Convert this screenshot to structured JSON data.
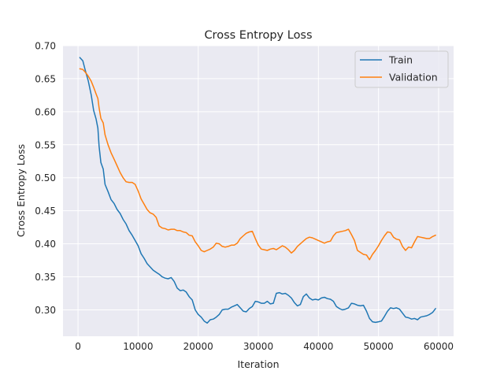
{
  "chart_data": {
    "type": "line",
    "title": "Cross Entropy Loss",
    "xlabel": "Iteration",
    "ylabel": "Cross Entropy Loss",
    "xlim": [
      -2500,
      62500
    ],
    "ylim": [
      0.26,
      0.7
    ],
    "xticks": [
      0,
      10000,
      20000,
      30000,
      40000,
      50000,
      60000
    ],
    "yticks": [
      0.3,
      0.35,
      0.4,
      0.45,
      0.5,
      0.55,
      0.6,
      0.65,
      0.7
    ],
    "xtick_labels": [
      "0",
      "10000",
      "20000",
      "30000",
      "40000",
      "50000",
      "60000"
    ],
    "ytick_labels": [
      "0.30",
      "0.35",
      "0.40",
      "0.45",
      "0.50",
      "0.55",
      "0.60",
      "0.65",
      "0.70"
    ],
    "grid": true,
    "legend_position": "top-right",
    "series": [
      {
        "name": "Train",
        "color": "#1f77b4",
        "points": [
          [
            300,
            0.682
          ],
          [
            800,
            0.677
          ],
          [
            1200,
            0.663
          ],
          [
            1700,
            0.647
          ],
          [
            2200,
            0.625
          ],
          [
            2600,
            0.602
          ],
          [
            3000,
            0.589
          ],
          [
            3300,
            0.575
          ],
          [
            3500,
            0.548
          ],
          [
            3800,
            0.523
          ],
          [
            4200,
            0.513
          ],
          [
            4500,
            0.49
          ],
          [
            5000,
            0.479
          ],
          [
            5500,
            0.467
          ],
          [
            6000,
            0.461
          ],
          [
            6500,
            0.452
          ],
          [
            7000,
            0.446
          ],
          [
            7500,
            0.437
          ],
          [
            8000,
            0.43
          ],
          [
            8500,
            0.42
          ],
          [
            9000,
            0.413
          ],
          [
            9500,
            0.405
          ],
          [
            10000,
            0.397
          ],
          [
            10500,
            0.385
          ],
          [
            11000,
            0.378
          ],
          [
            11500,
            0.37
          ],
          [
            12000,
            0.365
          ],
          [
            12500,
            0.36
          ],
          [
            13000,
            0.357
          ],
          [
            13500,
            0.354
          ],
          [
            14000,
            0.35
          ],
          [
            14500,
            0.348
          ],
          [
            15000,
            0.347
          ],
          [
            15500,
            0.349
          ],
          [
            16000,
            0.343
          ],
          [
            16500,
            0.333
          ],
          [
            17000,
            0.329
          ],
          [
            17500,
            0.33
          ],
          [
            18000,
            0.327
          ],
          [
            18500,
            0.32
          ],
          [
            19000,
            0.315
          ],
          [
            19500,
            0.3
          ],
          [
            20000,
            0.293
          ],
          [
            20500,
            0.289
          ],
          [
            21000,
            0.283
          ],
          [
            21500,
            0.28
          ],
          [
            22000,
            0.285
          ],
          [
            22500,
            0.286
          ],
          [
            23000,
            0.289
          ],
          [
            23500,
            0.293
          ],
          [
            24000,
            0.3
          ],
          [
            24500,
            0.301
          ],
          [
            25000,
            0.301
          ],
          [
            25500,
            0.304
          ],
          [
            26000,
            0.306
          ],
          [
            26500,
            0.308
          ],
          [
            27000,
            0.303
          ],
          [
            27500,
            0.298
          ],
          [
            28000,
            0.297
          ],
          [
            28500,
            0.302
          ],
          [
            29000,
            0.305
          ],
          [
            29500,
            0.313
          ],
          [
            30000,
            0.312
          ],
          [
            30500,
            0.31
          ],
          [
            31000,
            0.31
          ],
          [
            31500,
            0.313
          ],
          [
            32000,
            0.309
          ],
          [
            32500,
            0.31
          ],
          [
            33000,
            0.325
          ],
          [
            33500,
            0.326
          ],
          [
            34000,
            0.324
          ],
          [
            34500,
            0.325
          ],
          [
            35000,
            0.322
          ],
          [
            35500,
            0.318
          ],
          [
            36000,
            0.311
          ],
          [
            36500,
            0.306
          ],
          [
            37000,
            0.308
          ],
          [
            37500,
            0.32
          ],
          [
            38000,
            0.324
          ],
          [
            38500,
            0.318
          ],
          [
            39000,
            0.315
          ],
          [
            39500,
            0.316
          ],
          [
            40000,
            0.315
          ],
          [
            40500,
            0.318
          ],
          [
            41000,
            0.319
          ],
          [
            41500,
            0.317
          ],
          [
            42000,
            0.316
          ],
          [
            42500,
            0.313
          ],
          [
            43000,
            0.305
          ],
          [
            43500,
            0.302
          ],
          [
            44000,
            0.3
          ],
          [
            44500,
            0.301
          ],
          [
            45000,
            0.303
          ],
          [
            45500,
            0.31
          ],
          [
            46000,
            0.309
          ],
          [
            46500,
            0.307
          ],
          [
            47000,
            0.306
          ],
          [
            47500,
            0.307
          ],
          [
            48000,
            0.298
          ],
          [
            48500,
            0.287
          ],
          [
            49000,
            0.282
          ],
          [
            49500,
            0.281
          ],
          [
            50000,
            0.282
          ],
          [
            50500,
            0.283
          ],
          [
            51000,
            0.29
          ],
          [
            51500,
            0.298
          ],
          [
            52000,
            0.303
          ],
          [
            52500,
            0.302
          ],
          [
            53000,
            0.303
          ],
          [
            53500,
            0.301
          ],
          [
            54000,
            0.295
          ],
          [
            54500,
            0.289
          ],
          [
            55000,
            0.288
          ],
          [
            55500,
            0.286
          ],
          [
            56000,
            0.287
          ],
          [
            56500,
            0.285
          ],
          [
            57000,
            0.289
          ],
          [
            57500,
            0.29
          ],
          [
            58000,
            0.291
          ],
          [
            58500,
            0.293
          ],
          [
            59000,
            0.296
          ],
          [
            59500,
            0.302
          ]
        ]
      },
      {
        "name": "Validation",
        "color": "#ff7f0e",
        "points": [
          [
            300,
            0.665
          ],
          [
            800,
            0.664
          ],
          [
            1200,
            0.66
          ],
          [
            1700,
            0.654
          ],
          [
            2200,
            0.646
          ],
          [
            2600,
            0.637
          ],
          [
            3000,
            0.627
          ],
          [
            3300,
            0.62
          ],
          [
            3500,
            0.606
          ],
          [
            3800,
            0.59
          ],
          [
            4200,
            0.583
          ],
          [
            4500,
            0.565
          ],
          [
            5000,
            0.55
          ],
          [
            5500,
            0.538
          ],
          [
            6000,
            0.528
          ],
          [
            6500,
            0.518
          ],
          [
            7000,
            0.508
          ],
          [
            7500,
            0.5
          ],
          [
            8000,
            0.494
          ],
          [
            8500,
            0.493
          ],
          [
            9000,
            0.493
          ],
          [
            9500,
            0.49
          ],
          [
            10000,
            0.48
          ],
          [
            10500,
            0.468
          ],
          [
            11000,
            0.46
          ],
          [
            11500,
            0.452
          ],
          [
            12000,
            0.447
          ],
          [
            12500,
            0.445
          ],
          [
            13000,
            0.44
          ],
          [
            13500,
            0.427
          ],
          [
            14000,
            0.424
          ],
          [
            14500,
            0.423
          ],
          [
            15000,
            0.421
          ],
          [
            15500,
            0.422
          ],
          [
            16000,
            0.422
          ],
          [
            16500,
            0.42
          ],
          [
            17000,
            0.42
          ],
          [
            17500,
            0.418
          ],
          [
            18000,
            0.417
          ],
          [
            18500,
            0.413
          ],
          [
            19000,
            0.412
          ],
          [
            19500,
            0.403
          ],
          [
            20000,
            0.397
          ],
          [
            20500,
            0.39
          ],
          [
            21000,
            0.388
          ],
          [
            21500,
            0.39
          ],
          [
            22000,
            0.392
          ],
          [
            22500,
            0.395
          ],
          [
            23000,
            0.401
          ],
          [
            23500,
            0.4
          ],
          [
            24000,
            0.396
          ],
          [
            24500,
            0.395
          ],
          [
            25000,
            0.396
          ],
          [
            25500,
            0.398
          ],
          [
            26000,
            0.398
          ],
          [
            26500,
            0.401
          ],
          [
            27000,
            0.408
          ],
          [
            27500,
            0.412
          ],
          [
            28000,
            0.416
          ],
          [
            28500,
            0.418
          ],
          [
            29000,
            0.419
          ],
          [
            29500,
            0.408
          ],
          [
            30000,
            0.398
          ],
          [
            30500,
            0.392
          ],
          [
            31000,
            0.391
          ],
          [
            31500,
            0.39
          ],
          [
            32000,
            0.392
          ],
          [
            32500,
            0.393
          ],
          [
            33000,
            0.391
          ],
          [
            33500,
            0.394
          ],
          [
            34000,
            0.397
          ],
          [
            34500,
            0.395
          ],
          [
            35000,
            0.391
          ],
          [
            35500,
            0.386
          ],
          [
            36000,
            0.39
          ],
          [
            36500,
            0.396
          ],
          [
            37000,
            0.4
          ],
          [
            37500,
            0.404
          ],
          [
            38000,
            0.408
          ],
          [
            38500,
            0.41
          ],
          [
            39000,
            0.409
          ],
          [
            39500,
            0.407
          ],
          [
            40000,
            0.405
          ],
          [
            40500,
            0.403
          ],
          [
            41000,
            0.401
          ],
          [
            41500,
            0.403
          ],
          [
            42000,
            0.404
          ],
          [
            42500,
            0.412
          ],
          [
            43000,
            0.417
          ],
          [
            43500,
            0.418
          ],
          [
            44000,
            0.419
          ],
          [
            44500,
            0.42
          ],
          [
            45000,
            0.422
          ],
          [
            45500,
            0.414
          ],
          [
            46000,
            0.405
          ],
          [
            46500,
            0.39
          ],
          [
            47000,
            0.387
          ],
          [
            47500,
            0.384
          ],
          [
            48000,
            0.383
          ],
          [
            48500,
            0.376
          ],
          [
            49000,
            0.384
          ],
          [
            49500,
            0.39
          ],
          [
            50000,
            0.397
          ],
          [
            50500,
            0.405
          ],
          [
            51000,
            0.412
          ],
          [
            51500,
            0.418
          ],
          [
            52000,
            0.417
          ],
          [
            52500,
            0.41
          ],
          [
            53000,
            0.407
          ],
          [
            53500,
            0.406
          ],
          [
            54000,
            0.396
          ],
          [
            54500,
            0.39
          ],
          [
            55000,
            0.395
          ],
          [
            55500,
            0.394
          ],
          [
            56000,
            0.403
          ],
          [
            56500,
            0.411
          ],
          [
            57000,
            0.41
          ],
          [
            57500,
            0.409
          ],
          [
            58000,
            0.408
          ],
          [
            58500,
            0.408
          ],
          [
            59000,
            0.411
          ],
          [
            59500,
            0.413
          ]
        ]
      }
    ]
  }
}
